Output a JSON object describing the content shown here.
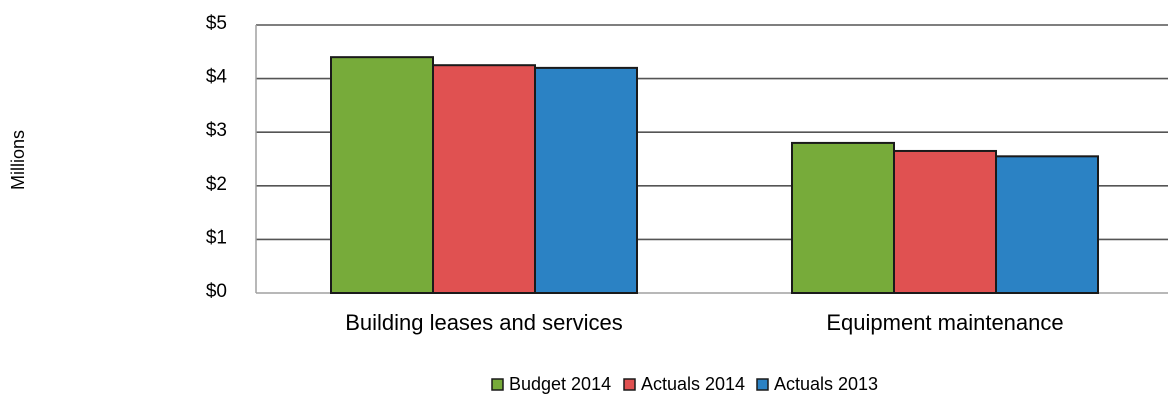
{
  "chart_data": {
    "type": "bar",
    "categories": [
      "Building leases and services",
      "Equipment maintenance"
    ],
    "series": [
      {
        "name": "Budget 2014",
        "values": [
          4.4,
          2.8
        ],
        "color": "#77ab3a"
      },
      {
        "name": "Actuals 2014",
        "values": [
          4.25,
          2.65
        ],
        "color": "#e05151"
      },
      {
        "name": "Actuals 2013",
        "values": [
          4.2,
          2.55
        ],
        "color": "#2b82c4"
      }
    ],
    "ylabel": "Millions",
    "ylim": [
      0,
      5
    ],
    "yticks": [
      0,
      1,
      2,
      3,
      4,
      5
    ],
    "ytick_labels": [
      "$0",
      "$1",
      "$2",
      "$3",
      "$4",
      "$5"
    ],
    "grid": true,
    "legend_position": "bottom"
  }
}
